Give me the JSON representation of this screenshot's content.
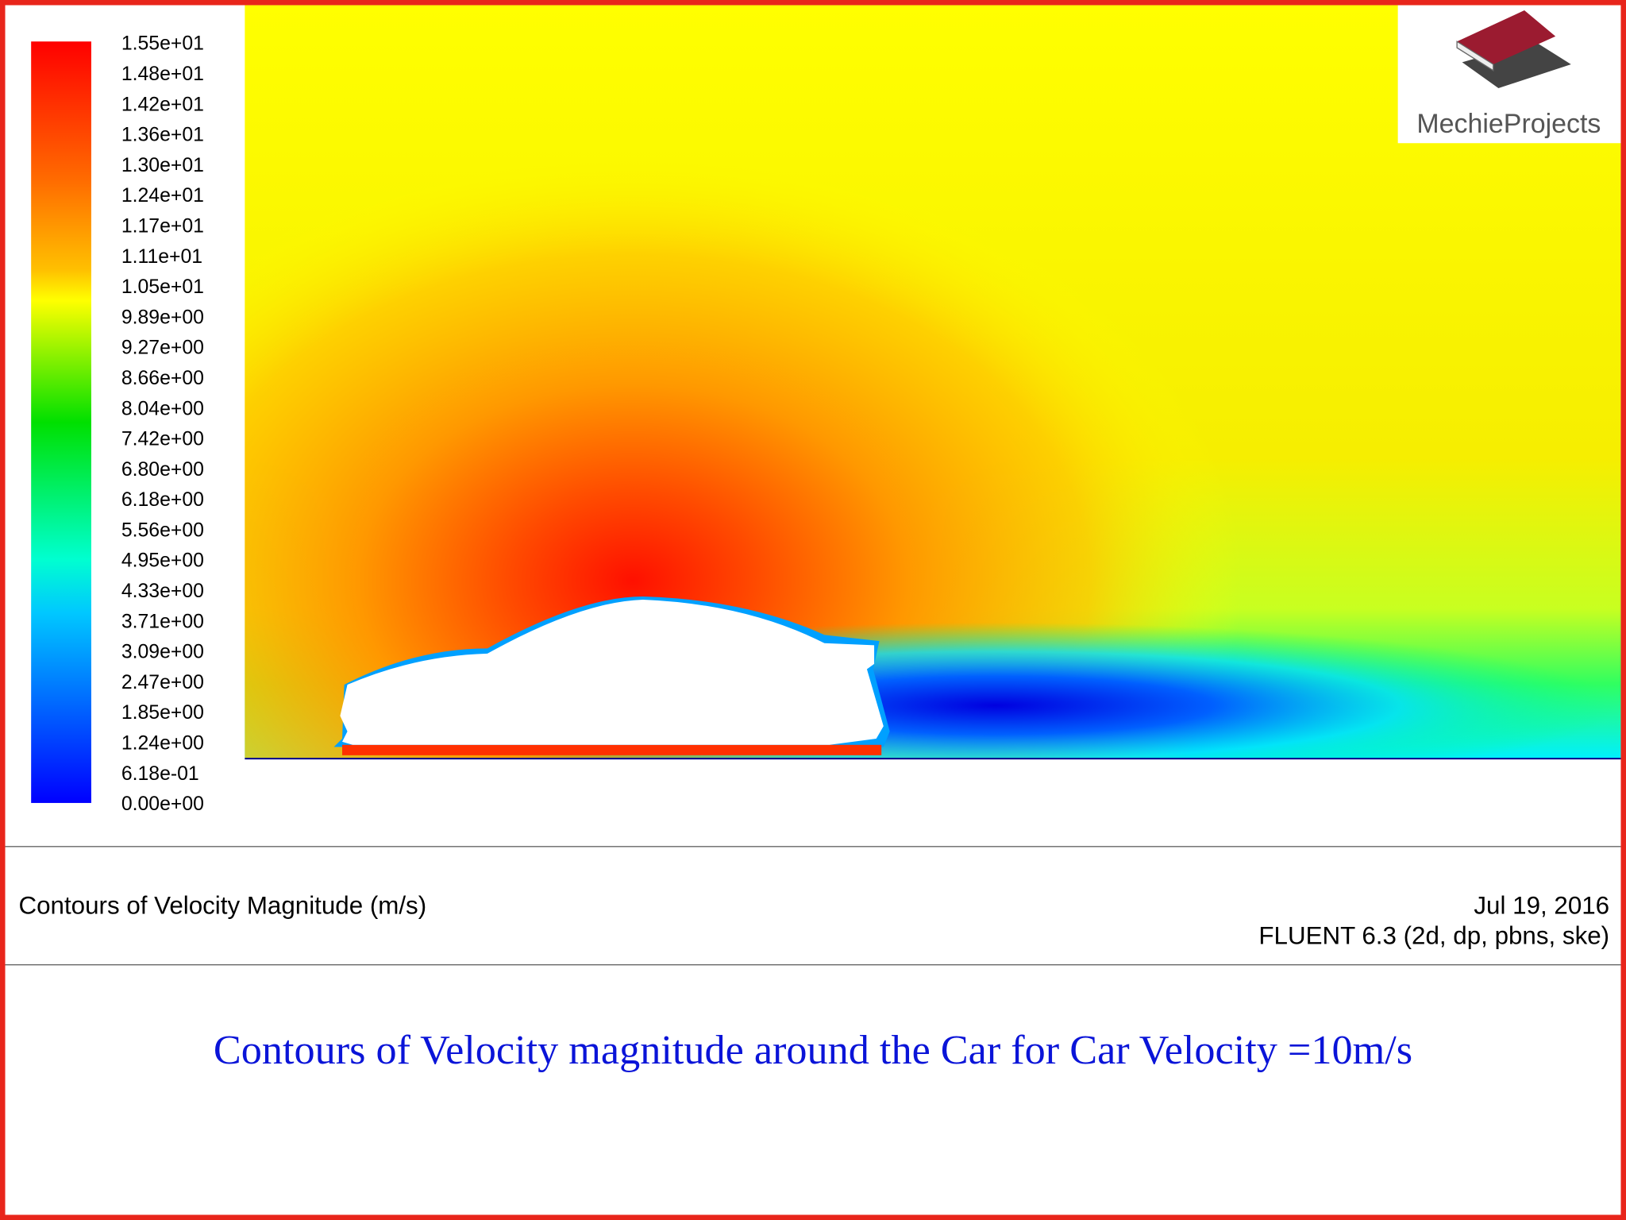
{
  "legend": {
    "labels": [
      "1.55e+01",
      "1.48e+01",
      "1.42e+01",
      "1.36e+01",
      "1.30e+01",
      "1.24e+01",
      "1.17e+01",
      "1.11e+01",
      "1.05e+01",
      "9.89e+00",
      "9.27e+00",
      "8.66e+00",
      "8.04e+00",
      "7.42e+00",
      "6.80e+00",
      "6.18e+00",
      "5.56e+00",
      "4.95e+00",
      "4.33e+00",
      "3.71e+00",
      "3.09e+00",
      "2.47e+00",
      "1.85e+00",
      "1.24e+00",
      "6.18e-01",
      "0.00e+00"
    ]
  },
  "logo": "MechieProjects",
  "footer": {
    "title": "Contours of Velocity Magnitude (m/s)",
    "date": "Jul 19, 2016",
    "solver": "FLUENT 6.3 (2d, dp, pbns, ske)"
  },
  "caption": "Contours of Velocity magnitude around the Car for Car Velocity =10m/s"
}
